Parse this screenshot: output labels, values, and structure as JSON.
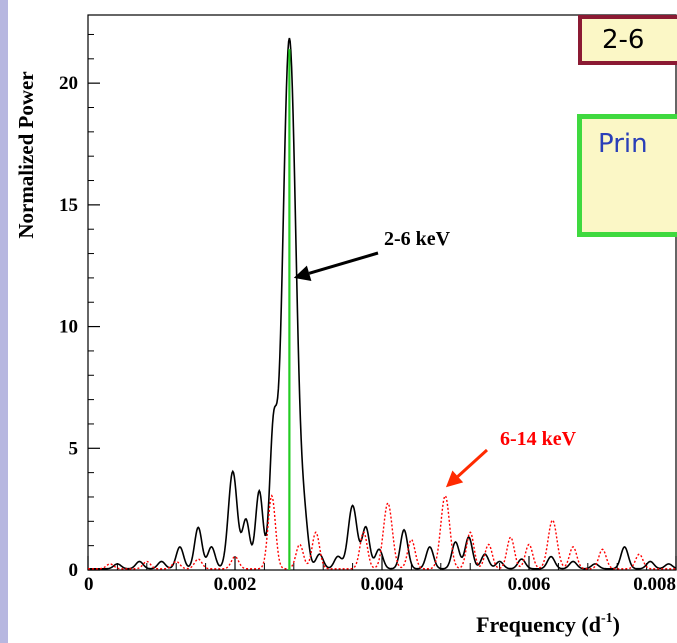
{
  "chart_data": {
    "type": "line",
    "xlabel": "Frequency (d",
    "xlabel_sup": "-1",
    "xlabel_close": ")",
    "ylabel": "Normalized Power",
    "xlim": [
      0,
      0.008
    ],
    "ylim": [
      0,
      22.8
    ],
    "x_ticks": [
      0,
      0.002,
      0.004,
      0.006,
      0.008
    ],
    "x_tick_labels": [
      "0",
      "0.002",
      "0.004",
      "0.006",
      "0.008"
    ],
    "y_ticks": [
      0,
      5,
      10,
      15,
      20
    ],
    "y_tick_labels": [
      "0",
      "5",
      "10",
      "15",
      "20"
    ],
    "grid": false,
    "marker_line": {
      "x": 0.00274,
      "color": "#22cc22"
    },
    "series": [
      {
        "name": "2-6 keV",
        "color": "#000000",
        "style": "solid",
        "peaks": [
          [
            0.00274,
            21.8,
            9e-05
          ],
          [
            0.00252,
            5.2,
            5e-05
          ],
          [
            0.00233,
            3.2,
            5e-05
          ],
          [
            0.00197,
            4.0,
            6e-05
          ],
          [
            0.00215,
            2.0,
            5e-05
          ],
          [
            0.0015,
            1.7,
            5e-05
          ],
          [
            0.00168,
            0.9,
            5e-05
          ],
          [
            0.00125,
            0.9,
            5e-05
          ],
          [
            0.001,
            0.3,
            5e-05
          ],
          [
            0.0007,
            0.3,
            5e-05
          ],
          [
            0.0004,
            0.2,
            5e-05
          ],
          [
            0.00295,
            1.4,
            5e-05
          ],
          [
            0.00315,
            0.6,
            5e-05
          ],
          [
            0.0034,
            0.5,
            5e-05
          ],
          [
            0.0036,
            2.6,
            6e-05
          ],
          [
            0.00378,
            1.7,
            5e-05
          ],
          [
            0.00396,
            0.8,
            5e-05
          ],
          [
            0.0043,
            1.6,
            5e-05
          ],
          [
            0.00465,
            0.9,
            5e-05
          ],
          [
            0.005,
            1.1,
            5e-05
          ],
          [
            0.00518,
            1.3,
            5e-05
          ],
          [
            0.0054,
            0.6,
            5e-05
          ],
          [
            0.0056,
            0.3,
            5e-05
          ],
          [
            0.0059,
            0.4,
            5e-05
          ],
          [
            0.0063,
            0.5,
            5e-05
          ],
          [
            0.0066,
            0.3,
            5e-05
          ],
          [
            0.0069,
            0.2,
            5e-05
          ],
          [
            0.0073,
            0.9,
            5e-05
          ],
          [
            0.00765,
            0.3,
            5e-05
          ],
          [
            0.0079,
            0.2,
            5e-05
          ]
        ]
      },
      {
        "name": "6-14 keV",
        "color": "#ff0000",
        "style": "dotted",
        "peaks": [
          [
            0.0025,
            3.0,
            5e-05
          ],
          [
            0.00288,
            1.0,
            5e-05
          ],
          [
            0.0031,
            1.5,
            5e-05
          ],
          [
            0.00375,
            1.5,
            5e-05
          ],
          [
            0.00408,
            2.7,
            6e-05
          ],
          [
            0.0044,
            1.2,
            5e-05
          ],
          [
            0.00486,
            3.0,
            6e-05
          ],
          [
            0.0052,
            1.5,
            5e-05
          ],
          [
            0.00545,
            1.0,
            5e-05
          ],
          [
            0.00575,
            1.3,
            5e-05
          ],
          [
            0.006,
            1.0,
            5e-05
          ],
          [
            0.00632,
            2.0,
            6e-05
          ],
          [
            0.0066,
            0.9,
            5e-05
          ],
          [
            0.007,
            0.8,
            5e-05
          ],
          [
            0.0075,
            0.6,
            5e-05
          ],
          [
            0.002,
            0.5,
            5e-05
          ],
          [
            0.0015,
            0.4,
            5e-05
          ],
          [
            0.0012,
            0.3,
            5e-05
          ],
          [
            0.0008,
            0.3,
            5e-05
          ],
          [
            0.0003,
            0.2,
            5e-05
          ]
        ]
      }
    ],
    "annotations": [
      {
        "text": "2-6 keV",
        "color": "#000000",
        "arrow_to_x": 0.0028,
        "arrow_to_y": 12.0
      },
      {
        "text": "6-14 keV",
        "color": "#ff0000",
        "arrow_to_x": 0.00487,
        "arrow_to_y": 3.4
      }
    ]
  },
  "callouts": {
    "top": "2-6",
    "middle": "Prin"
  }
}
